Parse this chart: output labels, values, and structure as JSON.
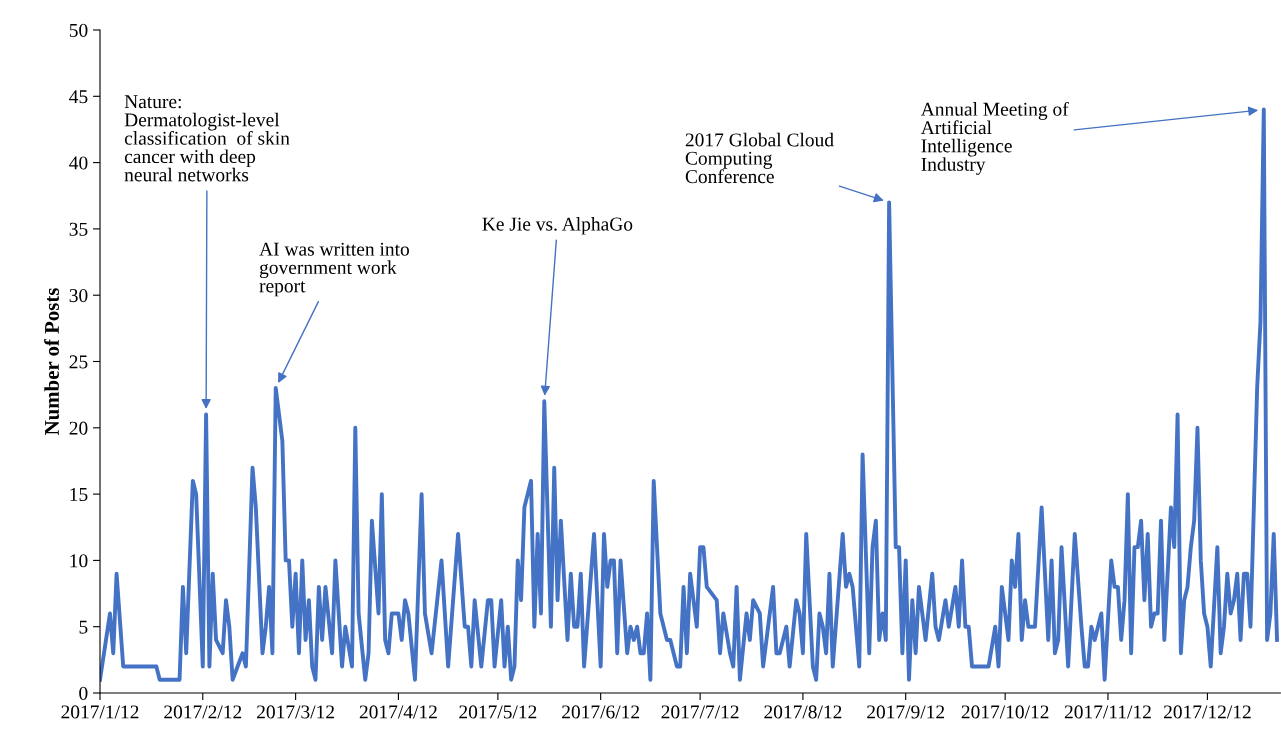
{
  "chart_data": {
    "type": "line",
    "ylabel": "Number of Posts",
    "x": [
      "2017-01-12",
      "2017-01-15",
      "2017-01-16",
      "2017-01-17",
      "2017-01-19",
      "2017-01-29",
      "2017-01-30",
      "2017-02-05",
      "2017-02-06",
      "2017-02-07",
      "2017-02-09",
      "2017-02-10",
      "2017-02-12",
      "2017-02-13",
      "2017-02-14",
      "2017-02-15",
      "2017-02-16",
      "2017-02-18",
      "2017-02-19",
      "2017-02-20",
      "2017-02-21",
      "2017-02-24",
      "2017-02-25",
      "2017-02-27",
      "2017-02-28",
      "2017-03-02",
      "2017-03-03",
      "2017-03-04",
      "2017-03-05",
      "2017-03-06",
      "2017-03-08",
      "2017-03-09",
      "2017-03-10",
      "2017-03-11",
      "2017-03-12",
      "2017-03-13",
      "2017-03-14",
      "2017-03-15",
      "2017-03-16",
      "2017-03-17",
      "2017-03-18",
      "2017-03-19",
      "2017-03-20",
      "2017-03-21",
      "2017-03-23",
      "2017-03-24",
      "2017-03-26",
      "2017-03-27",
      "2017-03-29",
      "2017-03-30",
      "2017-03-31",
      "2017-04-02",
      "2017-04-03",
      "2017-04-04",
      "2017-04-06",
      "2017-04-07",
      "2017-04-08",
      "2017-04-09",
      "2017-04-10",
      "2017-04-12",
      "2017-04-13",
      "2017-04-14",
      "2017-04-15",
      "2017-04-17",
      "2017-04-19",
      "2017-04-20",
      "2017-04-22",
      "2017-04-25",
      "2017-04-27",
      "2017-04-30",
      "2017-05-02",
      "2017-05-03",
      "2017-05-04",
      "2017-05-05",
      "2017-05-07",
      "2017-05-09",
      "2017-05-10",
      "2017-05-11",
      "2017-05-13",
      "2017-05-14",
      "2017-05-15",
      "2017-05-16",
      "2017-05-17",
      "2017-05-18",
      "2017-05-19",
      "2017-05-20",
      "2017-05-22",
      "2017-05-23",
      "2017-05-24",
      "2017-05-25",
      "2017-05-26",
      "2017-05-28",
      "2017-05-29",
      "2017-05-30",
      "2017-05-31",
      "2017-06-02",
      "2017-06-03",
      "2017-06-04",
      "2017-06-05",
      "2017-06-06",
      "2017-06-07",
      "2017-06-10",
      "2017-06-12",
      "2017-06-13",
      "2017-06-14",
      "2017-06-15",
      "2017-06-16",
      "2017-06-17",
      "2017-06-18",
      "2017-06-20",
      "2017-06-21",
      "2017-06-22",
      "2017-06-23",
      "2017-06-24",
      "2017-06-25",
      "2017-06-26",
      "2017-06-27",
      "2017-06-28",
      "2017-06-30",
      "2017-07-02",
      "2017-07-03",
      "2017-07-05",
      "2017-07-06",
      "2017-07-07",
      "2017-07-08",
      "2017-07-09",
      "2017-07-11",
      "2017-07-12",
      "2017-07-13",
      "2017-07-14",
      "2017-07-17",
      "2017-07-18",
      "2017-07-19",
      "2017-07-21",
      "2017-07-22",
      "2017-07-23",
      "2017-07-24",
      "2017-07-26",
      "2017-07-27",
      "2017-07-28",
      "2017-07-30",
      "2017-07-31",
      "2017-08-03",
      "2017-08-04",
      "2017-08-05",
      "2017-08-07",
      "2017-08-08",
      "2017-08-10",
      "2017-08-11",
      "2017-08-12",
      "2017-08-13",
      "2017-08-15",
      "2017-08-16",
      "2017-08-17",
      "2017-08-18",
      "2017-08-19",
      "2017-08-20",
      "2017-08-21",
      "2017-08-24",
      "2017-08-25",
      "2017-08-26",
      "2017-08-27",
      "2017-08-29",
      "2017-08-30",
      "2017-09-01",
      "2017-09-02",
      "2017-09-03",
      "2017-09-04",
      "2017-09-05",
      "2017-09-06",
      "2017-09-07",
      "2017-09-09",
      "2017-09-10",
      "2017-09-11",
      "2017-09-12",
      "2017-09-13",
      "2017-09-14",
      "2017-09-15",
      "2017-09-16",
      "2017-09-18",
      "2017-09-20",
      "2017-09-21",
      "2017-09-22",
      "2017-09-24",
      "2017-09-25",
      "2017-09-27",
      "2017-09-28",
      "2017-09-29",
      "2017-09-30",
      "2017-10-01",
      "2017-10-02",
      "2017-10-07",
      "2017-10-09",
      "2017-10-10",
      "2017-10-11",
      "2017-10-13",
      "2017-10-14",
      "2017-10-15",
      "2017-10-16",
      "2017-10-17",
      "2017-10-18",
      "2017-10-19",
      "2017-10-21",
      "2017-10-23",
      "2017-10-25",
      "2017-10-26",
      "2017-10-27",
      "2017-10-28",
      "2017-10-29",
      "2017-10-31",
      "2017-11-02",
      "2017-11-04",
      "2017-11-05",
      "2017-11-06",
      "2017-11-07",
      "2017-11-08",
      "2017-11-10",
      "2017-11-11",
      "2017-11-13",
      "2017-11-14",
      "2017-11-15",
      "2017-11-16",
      "2017-11-17",
      "2017-11-18",
      "2017-11-19",
      "2017-11-20",
      "2017-11-21",
      "2017-11-22",
      "2017-11-23",
      "2017-11-24",
      "2017-11-25",
      "2017-11-26",
      "2017-11-27",
      "2017-11-28",
      "2017-11-29",
      "2017-12-01",
      "2017-12-02",
      "2017-12-03",
      "2017-12-04",
      "2017-12-05",
      "2017-12-06",
      "2017-12-07",
      "2017-12-08",
      "2017-12-09",
      "2017-12-10",
      "2017-12-11",
      "2017-12-12",
      "2017-12-13",
      "2017-12-15",
      "2017-12-16",
      "2017-12-17",
      "2017-12-18",
      "2017-12-19",
      "2017-12-20",
      "2017-12-21",
      "2017-12-22",
      "2017-12-23",
      "2017-12-24",
      "2017-12-25",
      "2017-12-27",
      "2017-12-28",
      "2017-12-29",
      "2017-12-30",
      "2017-12-31",
      "2018-01-01",
      "2018-01-02"
    ],
    "series": [
      {
        "color": "#4472c4",
        "values": [
          1,
          6,
          3,
          9,
          2,
          2,
          1,
          1,
          8,
          3,
          16,
          15,
          2,
          21,
          2,
          9,
          4,
          3,
          7,
          5,
          1,
          3,
          2,
          17,
          14,
          3,
          5,
          8,
          3,
          23,
          19,
          10,
          10,
          5,
          9,
          3,
          10,
          4,
          7,
          2,
          1,
          8,
          4,
          8,
          3,
          10,
          2,
          5,
          2,
          20,
          6,
          1,
          3,
          13,
          6,
          15,
          4,
          3,
          6,
          6,
          4,
          7,
          6,
          1,
          15,
          6,
          3,
          10,
          2,
          12,
          5,
          5,
          2,
          7,
          2,
          7,
          7,
          2,
          7,
          2,
          5,
          1,
          2,
          10,
          7,
          14,
          16,
          5,
          12,
          6,
          22,
          5,
          17,
          7,
          13,
          4,
          9,
          5,
          5,
          9,
          2,
          12,
          2,
          12,
          8,
          10,
          10,
          3,
          10,
          3,
          5,
          4,
          5,
          3,
          3,
          6,
          1,
          16,
          6,
          4,
          4,
          2,
          2,
          8,
          3,
          9,
          5,
          11,
          11,
          8,
          7,
          3,
          6,
          3,
          2,
          8,
          1,
          6,
          4,
          7,
          6,
          2,
          8,
          3,
          3,
          5,
          2,
          7,
          6,
          3,
          12,
          2,
          1,
          6,
          5,
          3,
          9,
          2,
          12,
          8,
          9,
          8,
          2,
          18,
          3,
          11,
          13,
          4,
          6,
          4,
          37,
          11,
          11,
          3,
          10,
          1,
          7,
          3,
          8,
          4,
          9,
          5,
          4,
          7,
          5,
          8,
          5,
          10,
          5,
          5,
          2,
          2,
          5,
          2,
          8,
          4,
          10,
          8,
          12,
          4,
          7,
          5,
          5,
          14,
          4,
          10,
          3,
          4,
          11,
          2,
          12,
          5,
          2,
          2,
          5,
          4,
          6,
          1,
          10,
          8,
          8,
          4,
          7,
          15,
          3,
          11,
          11,
          13,
          7,
          12,
          5,
          6,
          6,
          13,
          4,
          14,
          11,
          21,
          3,
          7,
          8,
          11,
          13,
          20,
          10,
          6,
          5,
          2,
          11,
          3,
          5,
          9,
          6,
          7,
          9,
          4,
          9,
          9,
          5,
          23,
          28,
          44,
          4,
          6,
          12,
          4
        ]
      }
    ],
    "xlim": [
      "2017-01-12",
      "2018-01-03"
    ],
    "xticks": [
      {
        "value": "2017-01-12",
        "label": "2017/1/12"
      },
      {
        "value": "2017-02-12",
        "label": "2017/2/12"
      },
      {
        "value": "2017-03-12",
        "label": "2017/3/12"
      },
      {
        "value": "2017-04-12",
        "label": "2017/4/12"
      },
      {
        "value": "2017-05-12",
        "label": "2017/5/12"
      },
      {
        "value": "2017-06-12",
        "label": "2017/6/12"
      },
      {
        "value": "2017-07-12",
        "label": "2017/7/12"
      },
      {
        "value": "2017-08-12",
        "label": "2017/8/12"
      },
      {
        "value": "2017-09-12",
        "label": "2017/9/12"
      },
      {
        "value": "2017-10-12",
        "label": "2017/10/12"
      },
      {
        "value": "2017-11-12",
        "label": "2017/11/12"
      },
      {
        "value": "2017-12-12",
        "label": "2017/12/12"
      }
    ],
    "ylim": [
      0,
      50
    ],
    "yticks": [
      0,
      5,
      10,
      15,
      20,
      25,
      30,
      35,
      40,
      45,
      50
    ],
    "grid": false,
    "marker": "none",
    "line_style": "solid",
    "annotations": [
      {
        "text": "Nature:\nDermatologist-level\nclassification  of skin\ncancer with deep\nneural networks",
        "x": "2017-02-13",
        "y": 21
      },
      {
        "text": "AI was written into\ngovernment work\nreport",
        "x": "2017-03-06",
        "y": 23
      },
      {
        "text": "Ke Jie vs. AlphaGo",
        "x": "2017-05-26",
        "y": 22
      },
      {
        "text": "2017 Global Cloud\nComputing\nConference",
        "x": "2017-09-07",
        "y": 37
      },
      {
        "text": "Annual Meeting of\nArtificial\nIntelligence\nIndustry",
        "x": "2017-12-29",
        "y": 44
      }
    ]
  }
}
